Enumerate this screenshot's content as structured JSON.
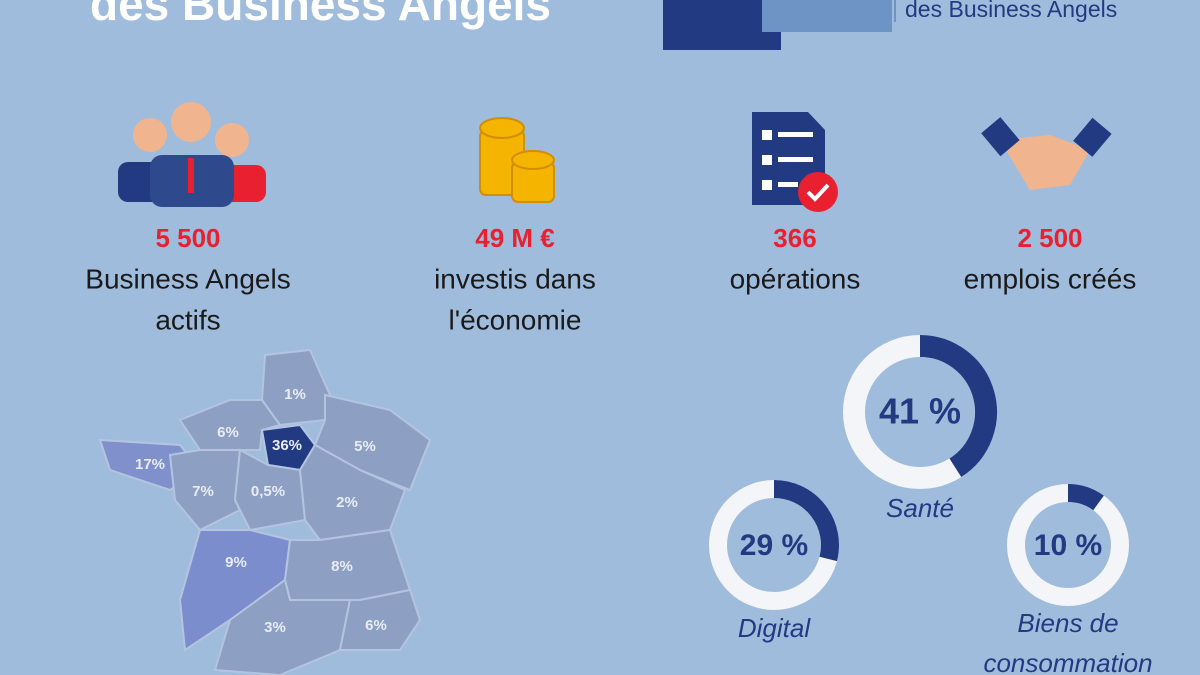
{
  "header": {
    "title": "des Business Angels",
    "logo_tagline": "des Business Angels"
  },
  "stats": [
    {
      "value": "5 500",
      "lines": [
        "Business Angels",
        "actifs"
      ]
    },
    {
      "value": "49 M €",
      "lines": [
        "investis dans",
        "l'économie"
      ]
    },
    {
      "value": "366",
      "lines": [
        "opérations"
      ]
    },
    {
      "value": "2 500",
      "lines": [
        "emplois créés"
      ]
    }
  ],
  "map": {
    "regions": [
      "1%",
      "6%",
      "36%",
      "5%",
      "17%",
      "7%",
      "0,5%",
      "2%",
      "9%",
      "8%",
      "3%",
      "6%"
    ]
  },
  "donuts": [
    {
      "value": 41,
      "label": "41 %",
      "name": [
        "Santé"
      ]
    },
    {
      "value": 29,
      "label": "29 %",
      "name": [
        "Digital"
      ]
    },
    {
      "value": 10,
      "label": "10 %",
      "name": [
        "Biens de",
        "consommation"
      ]
    }
  ]
}
